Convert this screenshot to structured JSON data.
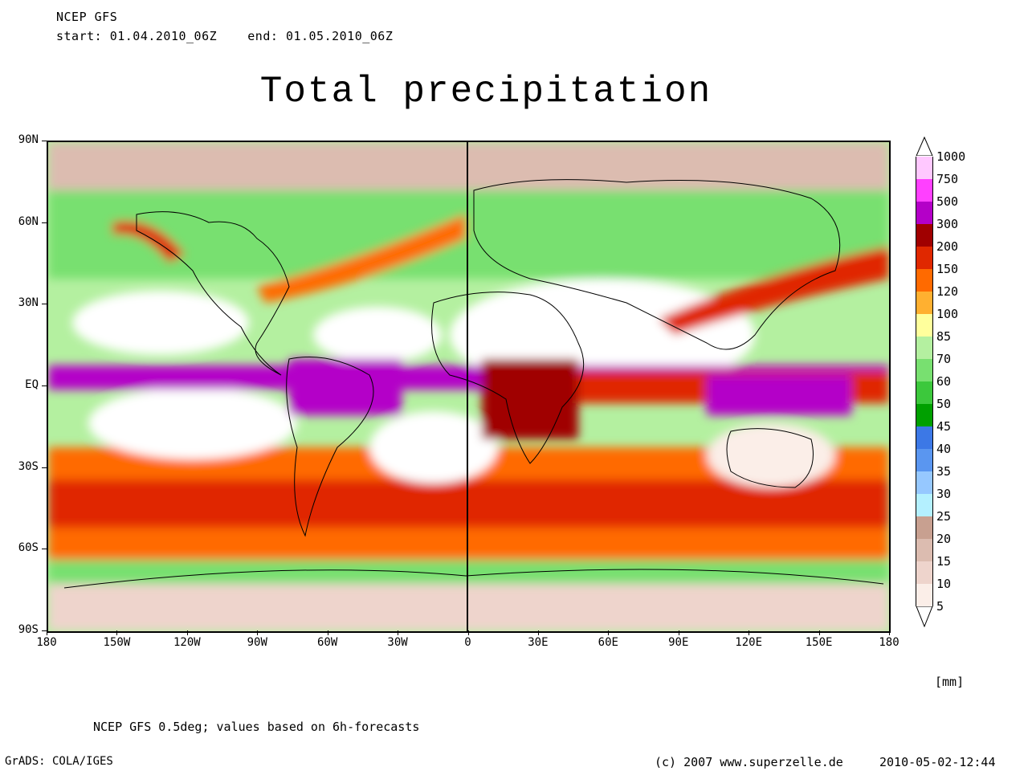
{
  "header": {
    "model": "NCEP GFS",
    "start_label": "start:",
    "start": "01.04.2010_06Z",
    "end_label": "end:",
    "end": "01.05.2010_06Z"
  },
  "title": "Total precipitation",
  "map": {
    "lat_labels": [
      "90N",
      "60N",
      "30N",
      "EQ",
      "30S",
      "60S",
      "90S"
    ],
    "lon_labels": [
      "180",
      "150W",
      "120W",
      "90W",
      "60W",
      "30W",
      "0",
      "30E",
      "60E",
      "90E",
      "120E",
      "150E",
      "180"
    ]
  },
  "colorbar": {
    "levels": [
      "1000",
      "750",
      "500",
      "300",
      "200",
      "150",
      "120",
      "100",
      "85",
      "70",
      "60",
      "50",
      "45",
      "40",
      "35",
      "30",
      "25",
      "20",
      "15",
      "10",
      "5"
    ],
    "colors": [
      "#ffc8ff",
      "#ff40ff",
      "#b400c8",
      "#a00000",
      "#e02800",
      "#ff6a00",
      "#ffb030",
      "#ffff9c",
      "#b4f0a0",
      "#78e070",
      "#3cc83c",
      "#00a000",
      "#3c78e6",
      "#5a96f0",
      "#96c8ff",
      "#b4f0ff",
      "#c8a090",
      "#dcbcb0",
      "#eed4cc",
      "#fbeee8",
      "#ffffff"
    ],
    "unit": "[mm]"
  },
  "footer": {
    "note": "NCEP GFS 0.5deg; values based on 6h-forecasts",
    "grads": "GrADS: COLA/IGES",
    "copyright": "(c) 2007 www.superzelle.de",
    "timestamp": "2010-05-02-12:44"
  }
}
